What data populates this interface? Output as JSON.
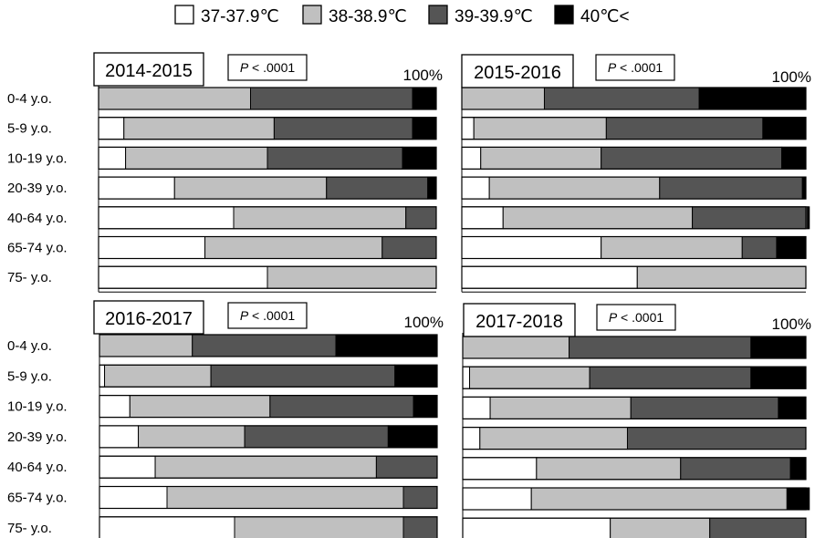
{
  "legend": {
    "items": [
      {
        "label": "37-37.9℃",
        "color": "#ffffff"
      },
      {
        "label": "38-38.9℃",
        "color": "#c0c0c0"
      },
      {
        "label": "39-39.9℃",
        "color": "#555555"
      },
      {
        "label": "40℃<",
        "color": "#000000"
      }
    ]
  },
  "chart_data": [
    {
      "type": "bar",
      "orientation": "horizontal-stacked-percent",
      "title": "2014-2015",
      "annotation_p": "P",
      "annotation_value": "< .0001",
      "end_label": "100%",
      "categories": [
        "0-4 y.o.",
        "5-9 y.o.",
        "10-19 y.o.",
        "20-39 y.o.",
        "40-64 y.o.",
        "65-74 y.o.",
        "75- y.o."
      ],
      "series": [
        {
          "name": "37-37.9℃",
          "values": [
            0,
            7.5,
            8,
            22.5,
            40,
            31.5,
            50
          ]
        },
        {
          "name": "38-38.9℃",
          "values": [
            45,
            44.5,
            42,
            45,
            51,
            52.5,
            50
          ]
        },
        {
          "name": "39-39.9℃",
          "values": [
            48,
            41,
            40,
            30,
            9,
            16,
            0
          ]
        },
        {
          "name": "40℃<",
          "values": [
            7,
            7,
            10,
            2.5,
            0,
            0,
            0
          ]
        }
      ],
      "xlim": [
        0,
        100
      ]
    },
    {
      "type": "bar",
      "orientation": "horizontal-stacked-percent",
      "title": "2015-2016",
      "annotation_p": "P",
      "annotation_value": "< .0001",
      "end_label": "100%",
      "categories": [
        "0-4 y.o.",
        "5-9 y.o.",
        "10-19 y.o.",
        "20-39 y.o.",
        "40-64 y.o.",
        "65-74 y.o.",
        "75- y.o."
      ],
      "series": [
        {
          "name": "37-37.9℃",
          "values": [
            0,
            3.5,
            5.5,
            8,
            12,
            40.5,
            51
          ]
        },
        {
          "name": "38-38.9℃",
          "values": [
            24,
            38.5,
            35,
            49.5,
            55,
            41,
            49
          ]
        },
        {
          "name": "39-39.9℃",
          "values": [
            45,
            45.5,
            52.5,
            41.5,
            33.5,
            10,
            0
          ]
        },
        {
          "name": "40℃<",
          "values": [
            31,
            12.5,
            7,
            1,
            0.5,
            8.5,
            0
          ]
        }
      ],
      "xlim": [
        0,
        100
      ]
    },
    {
      "type": "bar",
      "orientation": "horizontal-stacked-percent",
      "title": "2016-2017",
      "annotation_p": "P",
      "annotation_value": "< .0001",
      "end_label": "100%",
      "categories": [
        "0-4 y.o.",
        "5-9 y.o.",
        "10-19 y.o.",
        "20-39 y.o.",
        "40-64 y.o.",
        "65-74 y.o.",
        "75- y.o."
      ],
      "series": [
        {
          "name": "37-37.9℃",
          "values": [
            0,
            1.5,
            9,
            11.5,
            16.5,
            20,
            40
          ]
        },
        {
          "name": "38-38.9℃",
          "values": [
            27.5,
            31.5,
            41.5,
            31.5,
            65.5,
            70,
            50
          ]
        },
        {
          "name": "39-39.9℃",
          "values": [
            42.5,
            54.5,
            42.5,
            42.5,
            18,
            10,
            10
          ]
        },
        {
          "name": "40℃<",
          "values": [
            30,
            12.5,
            7,
            14.5,
            0,
            0,
            0
          ]
        }
      ],
      "xlim": [
        0,
        100
      ]
    },
    {
      "type": "bar",
      "orientation": "horizontal-stacked-percent",
      "title": "2017-2018",
      "annotation_p": "P",
      "annotation_value": "< .0001",
      "end_label": "100%",
      "categories": [
        "0-4 y.o.",
        "5-9 y.o.",
        "10-19 y.o.",
        "20-39 y.o.",
        "40-64 y.o.",
        "65-74 y.o.",
        "75- y.o."
      ],
      "series": [
        {
          "name": "37-37.9℃",
          "values": [
            0,
            2,
            8,
            5,
            21.5,
            20,
            43
          ]
        },
        {
          "name": "38-38.9℃",
          "values": [
            31,
            35,
            41,
            43,
            42,
            74.5,
            29
          ]
        },
        {
          "name": "39-39.9℃",
          "values": [
            53,
            47,
            43,
            52,
            32,
            0,
            28
          ]
        },
        {
          "name": "40℃<",
          "values": [
            16,
            16,
            8,
            0,
            4.5,
            6.5,
            0
          ]
        }
      ],
      "xlim": [
        0,
        100
      ]
    }
  ]
}
